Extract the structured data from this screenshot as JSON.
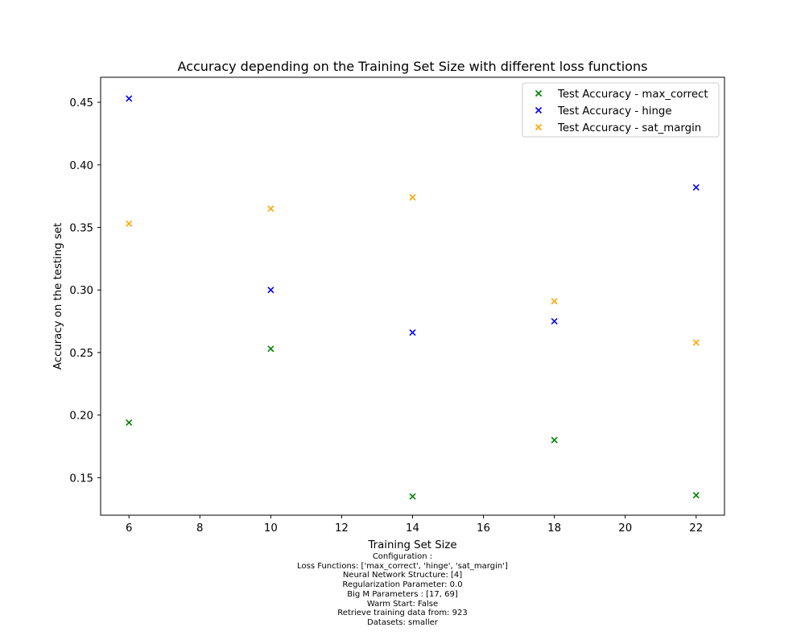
{
  "chart_data": {
    "type": "scatter",
    "title": "Accuracy depending on the Training Set Size with different loss functions",
    "xlabel": "Training Set Size",
    "ylabel": "Accuracy on the testing set",
    "xlim": [
      5.2,
      22.8
    ],
    "ylim": [
      0.12,
      0.47
    ],
    "xticks": [
      6,
      8,
      10,
      12,
      14,
      16,
      18,
      20,
      22
    ],
    "yticks": [
      0.15,
      0.2,
      0.25,
      0.3,
      0.35,
      0.4,
      0.45
    ],
    "legend_position": "top-right",
    "grid": false,
    "x": [
      6,
      10,
      14,
      18,
      22
    ],
    "series": [
      {
        "name": "Test Accuracy - max_correct",
        "color": "#008000",
        "marker": "x",
        "values": [
          0.194,
          0.253,
          0.135,
          0.18,
          0.136
        ]
      },
      {
        "name": "Test Accuracy - hinge",
        "color": "#0000ff",
        "marker": "x",
        "values": [
          0.453,
          0.3,
          0.266,
          0.275,
          0.382
        ]
      },
      {
        "name": "Test Accuracy - sat_margin",
        "color": "#ffa500",
        "marker": "x",
        "values": [
          0.353,
          0.365,
          0.374,
          0.291,
          0.258
        ]
      }
    ]
  },
  "caption": {
    "lines": [
      "Configuration :",
      "Loss Functions: ['max_correct', 'hinge', 'sat_margin']",
      "Neural Network Structure: [4]",
      "Regularization Parameter: 0.0",
      "Big M Parameters : [17, 69]",
      "Warm Start: False",
      "Retrieve training data from: 923",
      "Datasets: smaller"
    ]
  }
}
